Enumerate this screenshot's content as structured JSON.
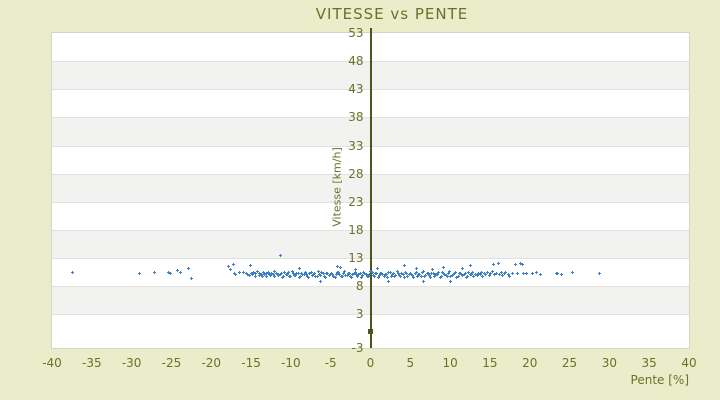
{
  "page": {
    "title": "VITESSE vs PENTE"
  },
  "colors": {
    "background": "#e9edca",
    "text": "#6c7128",
    "axis_line": "#50541b",
    "points": "#3f7fc1",
    "band_white": "#ffffff",
    "band_gray": "#f2f2f1",
    "gridline": "#e1e1dd",
    "plot_border": "#d4d4ca"
  },
  "chart_data": {
    "type": "scatter",
    "title": "VITESSE vs PENTE",
    "xlabel": "Pente [%]",
    "ylabel": "Vitesse [km/h]",
    "xlim": [
      -40,
      40
    ],
    "ylim": [
      -3,
      53
    ],
    "x_ticks": [
      -40,
      -35,
      -30,
      -25,
      -20,
      -15,
      -10,
      -5,
      0,
      5,
      10,
      15,
      20,
      25,
      30,
      35,
      40
    ],
    "y_ticks": [
      53,
      48,
      43,
      38,
      33,
      28,
      23,
      18,
      13,
      8,
      3,
      -3
    ],
    "grid": "horizontal alternating white/gray bands with light gridlines at each y tick",
    "legend_position": "none",
    "y_axis_drawn_at_x": 0,
    "axis_zero_marker": [
      0,
      0
    ],
    "marker": "plus",
    "series": [
      {
        "name": "Vitesse vs Pente",
        "color": "#3f7fc1",
        "points": [
          [
            -37.4,
            10.4
          ],
          [
            -29,
            10.2
          ],
          [
            -27.1,
            10.4
          ],
          [
            -25.4,
            10.4
          ],
          [
            -25.1,
            10.2
          ],
          [
            -24.3,
            10.8
          ],
          [
            -23.9,
            10.4
          ],
          [
            -22.9,
            11.2
          ],
          [
            -22.5,
            9.4
          ],
          [
            -17.8,
            11.5
          ],
          [
            -17.6,
            10.9
          ],
          [
            -17.2,
            11.8
          ],
          [
            -17.1,
            10.3
          ],
          [
            -16.9,
            10.1
          ],
          [
            -16.5,
            10.5
          ],
          [
            -16,
            10.4
          ],
          [
            -15.6,
            10.2
          ],
          [
            -15.1,
            11.6
          ],
          [
            -15.4,
            10.1
          ],
          [
            -15.2,
            9.9
          ],
          [
            -15,
            10.3
          ],
          [
            -14.8,
            10
          ],
          [
            -14.7,
            10.5
          ],
          [
            -14.5,
            9.8
          ],
          [
            -14.4,
            10.2
          ],
          [
            -14.2,
            10.6
          ],
          [
            -14,
            9.9
          ],
          [
            -13.9,
            10.3
          ],
          [
            -13.7,
            10.1
          ],
          [
            -13.6,
            9.7
          ],
          [
            -13.4,
            10.4
          ],
          [
            -13.3,
            10
          ],
          [
            -13.1,
            10.2
          ],
          [
            -13,
            9.8
          ],
          [
            -12.8,
            10.5
          ],
          [
            -12.7,
            10.1
          ],
          [
            -12.5,
            9.9
          ],
          [
            -12.4,
            10.3
          ],
          [
            -12.2,
            10
          ],
          [
            -12.1,
            10.6
          ],
          [
            -12,
            9.7
          ],
          [
            -11.8,
            10.2
          ],
          [
            -11.6,
            10
          ],
          [
            -11.3,
            13.5
          ],
          [
            -11.5,
            9.9
          ],
          [
            -11.2,
            10.3
          ],
          [
            -10.9,
            9.7
          ],
          [
            -10.6,
            10.1
          ],
          [
            -10.3,
            10.5
          ],
          [
            -10,
            9.8
          ],
          [
            -9.7,
            10.2
          ],
          [
            -9.4,
            9.9
          ],
          [
            -9.1,
            10.3
          ],
          [
            -8.8,
            9.7
          ],
          [
            -8.5,
            10.1
          ],
          [
            -8.2,
            10.5
          ],
          [
            -7.9,
            9.8
          ],
          [
            -7.6,
            10.2
          ],
          [
            -7.3,
            9.9
          ],
          [
            -7,
            10.3
          ],
          [
            -6.7,
            9.7
          ],
          [
            -6.4,
            10.1
          ],
          [
            -6.1,
            10.5
          ],
          [
            -5.8,
            9.8
          ],
          [
            -5.5,
            10.2
          ],
          [
            -5.2,
            9.9
          ],
          [
            -4.9,
            10.3
          ],
          [
            -4.6,
            9.7
          ],
          [
            -4.3,
            10.1
          ],
          [
            -4,
            10.5
          ],
          [
            -3.7,
            9.8
          ],
          [
            -3.4,
            10.2
          ],
          [
            -3.1,
            9.9
          ],
          [
            -2.8,
            10.3
          ],
          [
            -2.5,
            9.7
          ],
          [
            -2.2,
            10.1
          ],
          [
            -1.9,
            10.5
          ],
          [
            -1.6,
            9.8
          ],
          [
            -1.3,
            10.2
          ],
          [
            -1,
            9.9
          ],
          [
            -0.7,
            10.3
          ],
          [
            -0.4,
            9.7
          ],
          [
            -0.1,
            10.1
          ],
          [
            0.2,
            10.5
          ],
          [
            0.5,
            9.8
          ],
          [
            0.8,
            10.2
          ],
          [
            1.1,
            9.9
          ],
          [
            1.4,
            10.3
          ],
          [
            1.7,
            9.7
          ],
          [
            2,
            10.1
          ],
          [
            2.3,
            10.5
          ],
          [
            2.6,
            9.8
          ],
          [
            2.9,
            10.2
          ],
          [
            3.2,
            9.9
          ],
          [
            3.5,
            10.3
          ],
          [
            3.8,
            9.7
          ],
          [
            4.1,
            10.1
          ],
          [
            4.4,
            10.5
          ],
          [
            4.7,
            9.8
          ],
          [
            5,
            10.2
          ],
          [
            5.3,
            9.9
          ],
          [
            5.6,
            10.3
          ],
          [
            5.9,
            9.7
          ],
          [
            6.2,
            10.1
          ],
          [
            6.5,
            10.5
          ],
          [
            6.8,
            9.8
          ],
          [
            7.1,
            10.2
          ],
          [
            7.4,
            9.9
          ],
          [
            7.7,
            10.3
          ],
          [
            8,
            9.7
          ],
          [
            8.3,
            10.1
          ],
          [
            8.6,
            10.5
          ],
          [
            8.9,
            9.8
          ],
          [
            9.2,
            10.2
          ],
          [
            9.5,
            9.9
          ],
          [
            9.8,
            10.3
          ],
          [
            10.1,
            9.7
          ],
          [
            10.4,
            10.1
          ],
          [
            10.7,
            10.5
          ],
          [
            11,
            9.8
          ],
          [
            11.3,
            10.2
          ],
          [
            11.6,
            9.9
          ],
          [
            11.9,
            10.3
          ],
          [
            12.2,
            9.7
          ],
          [
            12.5,
            10.1
          ],
          [
            12.8,
            10.5
          ],
          [
            -11.35,
            10
          ],
          [
            -11.05,
            9.6
          ],
          [
            -10.75,
            10.4
          ],
          [
            -10.45,
            10.1
          ],
          [
            -10.15,
            9.8
          ],
          [
            -9.85,
            10.6
          ],
          [
            -9.55,
            9.9
          ],
          [
            -9.25,
            10.2
          ],
          [
            -8.95,
            9.5
          ],
          [
            -8.65,
            10.3
          ],
          [
            -8.35,
            10
          ],
          [
            -8.05,
            10
          ],
          [
            -7.75,
            9.6
          ],
          [
            -7.45,
            10.4
          ],
          [
            -7.15,
            10.1
          ],
          [
            -6.85,
            9.8
          ],
          [
            -6.55,
            10.6
          ],
          [
            -6.25,
            9.9
          ],
          [
            -5.95,
            10.2
          ],
          [
            -5.65,
            9.5
          ],
          [
            -5.35,
            10.3
          ],
          [
            -5.05,
            10
          ],
          [
            -4.75,
            10
          ],
          [
            -4.45,
            9.6
          ],
          [
            -4.15,
            10.4
          ],
          [
            -3.85,
            10.1
          ],
          [
            -3.55,
            9.8
          ],
          [
            -3.25,
            10.6
          ],
          [
            -2.95,
            9.9
          ],
          [
            -2.65,
            10.2
          ],
          [
            -2.35,
            9.5
          ],
          [
            -2.05,
            10.3
          ],
          [
            -1.75,
            10
          ],
          [
            -1.45,
            10
          ],
          [
            -1.15,
            9.6
          ],
          [
            -0.85,
            10.4
          ],
          [
            -0.55,
            10.1
          ],
          [
            -0.25,
            9.8
          ],
          [
            0.05,
            10.6
          ],
          [
            0.35,
            9.9
          ],
          [
            0.65,
            10.2
          ],
          [
            0.95,
            9.5
          ],
          [
            1.25,
            10.3
          ],
          [
            1.55,
            10
          ],
          [
            1.85,
            10
          ],
          [
            2.15,
            9.6
          ],
          [
            2.45,
            10.4
          ],
          [
            2.75,
            10.1
          ],
          [
            3.05,
            9.8
          ],
          [
            3.35,
            10.6
          ],
          [
            3.65,
            9.9
          ],
          [
            3.95,
            10.2
          ],
          [
            4.25,
            9.5
          ],
          [
            4.55,
            10.3
          ],
          [
            4.85,
            10
          ],
          [
            5.15,
            10
          ],
          [
            5.45,
            9.6
          ],
          [
            5.75,
            10.4
          ],
          [
            6.05,
            10.1
          ],
          [
            6.35,
            9.8
          ],
          [
            6.65,
            10.6
          ],
          [
            6.95,
            9.9
          ],
          [
            7.25,
            10.2
          ],
          [
            7.55,
            9.5
          ],
          [
            7.85,
            10.3
          ],
          [
            8.15,
            10
          ],
          [
            8.45,
            10
          ],
          [
            8.75,
            9.6
          ],
          [
            9.05,
            10.4
          ],
          [
            9.35,
            10.1
          ],
          [
            9.65,
            9.8
          ],
          [
            9.95,
            10.6
          ],
          [
            10.25,
            9.9
          ],
          [
            10.55,
            10.2
          ],
          [
            10.85,
            9.5
          ],
          [
            11.15,
            10.3
          ],
          [
            11.45,
            10
          ],
          [
            11.75,
            10
          ],
          [
            12.05,
            9.6
          ],
          [
            12.35,
            10.4
          ],
          [
            12.65,
            10.1
          ],
          [
            12.95,
            9.8
          ],
          [
            -8.9,
            11.2
          ],
          [
            -6.3,
            8.9
          ],
          [
            -4.1,
            11.5
          ],
          [
            -3.8,
            11.3
          ],
          [
            -1.9,
            11
          ],
          [
            0.9,
            11.1
          ],
          [
            2.2,
            8.9
          ],
          [
            4.3,
            11.6
          ],
          [
            5.8,
            11.2
          ],
          [
            6.7,
            8.8
          ],
          [
            7.8,
            11
          ],
          [
            9.2,
            11.4
          ],
          [
            10.1,
            8.8
          ],
          [
            11.5,
            11.2
          ],
          [
            12.6,
            11.7
          ],
          [
            13.2,
            10.1
          ],
          [
            13.4,
            9.9
          ],
          [
            13.6,
            10.3
          ],
          [
            13.8,
            10
          ],
          [
            14,
            10.5
          ],
          [
            14.1,
            9.8
          ],
          [
            14.3,
            10.2
          ],
          [
            14.5,
            10
          ],
          [
            14.7,
            10.4
          ],
          [
            14.9,
            9.9
          ],
          [
            15.1,
            10.2
          ],
          [
            15.3,
            10.6
          ],
          [
            15.5,
            11.8
          ],
          [
            15.6,
            10.1
          ],
          [
            15.8,
            10.3
          ],
          [
            16.1,
            12
          ],
          [
            16.2,
            10
          ],
          [
            16.4,
            10.4
          ],
          [
            16.6,
            9.9
          ],
          [
            16.8,
            10.2
          ],
          [
            17,
            10.5
          ],
          [
            17.3,
            10.1
          ],
          [
            17.5,
            9.8
          ],
          [
            17.8,
            10.3
          ],
          [
            18.2,
            11.8
          ],
          [
            18.4,
            10.2
          ],
          [
            18.8,
            12
          ],
          [
            19.1,
            11.9
          ],
          [
            19.2,
            10.3
          ],
          [
            19.6,
            10.3
          ],
          [
            20.4,
            10.3
          ],
          [
            20.9,
            10.5
          ],
          [
            21.3,
            10.1
          ],
          [
            23.3,
            10.3
          ],
          [
            23.5,
            10.3
          ],
          [
            24,
            10.1
          ],
          [
            25.4,
            10.5
          ],
          [
            28.8,
            10.3
          ]
        ]
      }
    ]
  }
}
